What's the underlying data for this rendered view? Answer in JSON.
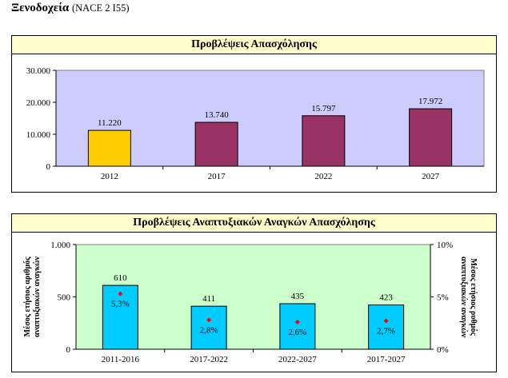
{
  "page": {
    "title": "Ξενοδοχεία",
    "code": "(NACE 2  I55)"
  },
  "colors": {
    "panel_title_bg": "#ffffcc",
    "plot1_bg": "#ccccff",
    "plot2_bg": "#ccffcc",
    "bar_highlight": "#ffcc00",
    "bar_purple": "#993366",
    "bar_cyan": "#00ccff",
    "marker_red": "#ff0000"
  },
  "chart_data": [
    {
      "type": "bar",
      "title": "Προβλέψεις Απασχόλησης",
      "categories": [
        "2012",
        "2017",
        "2022",
        "2027"
      ],
      "values": [
        11220,
        13740,
        15797,
        17972
      ],
      "value_labels": [
        "11.220",
        "13.740",
        "15.797",
        "17.972"
      ],
      "highlight_index": 0,
      "ylim": [
        0,
        30000
      ],
      "yticks": [
        0,
        10000,
        20000,
        30000
      ],
      "ytick_labels": [
        "0",
        "10.000",
        "20.000",
        "30.000"
      ],
      "xlabel": "",
      "ylabel": "",
      "grid": false
    },
    {
      "type": "bar",
      "title": "Προβλέψεις Αναπτυξιακών Αναγκών Απασχόλησης",
      "categories": [
        "2011-2016",
        "2017-2022",
        "2022-2027",
        "2017-2027"
      ],
      "series": [
        {
          "name": "Μέσος ετήσιος αριθμός αναπτυξιακών αναγκών",
          "axis": "left",
          "values": [
            610,
            411,
            435,
            423
          ],
          "value_labels": [
            "610",
            "411",
            "435",
            "423"
          ]
        },
        {
          "name": "Μέσος ετήσιος ρυθμός αναπτυξιακών αναγκών",
          "axis": "right",
          "type": "scatter",
          "values": [
            5.3,
            2.8,
            2.6,
            2.7
          ],
          "value_labels": [
            "5,3%",
            "2,8%",
            "2,6%",
            "2,7%"
          ]
        }
      ],
      "ylim": [
        0,
        1000
      ],
      "yticks": [
        0,
        500,
        1000
      ],
      "ytick_labels": [
        "0",
        "500",
        "1.000"
      ],
      "ylabel": "Μέσος ετήσιος αριθμός αναπτυξιακών αναγκών",
      "y2lim": [
        0,
        10
      ],
      "y2ticks": [
        0,
        5,
        10
      ],
      "y2tick_labels": [
        "0%",
        "5%",
        "10%"
      ],
      "y2label": "Μέσος ετήσιος ρυθμός αναπτυξιακών αναγκών",
      "grid": false
    }
  ]
}
